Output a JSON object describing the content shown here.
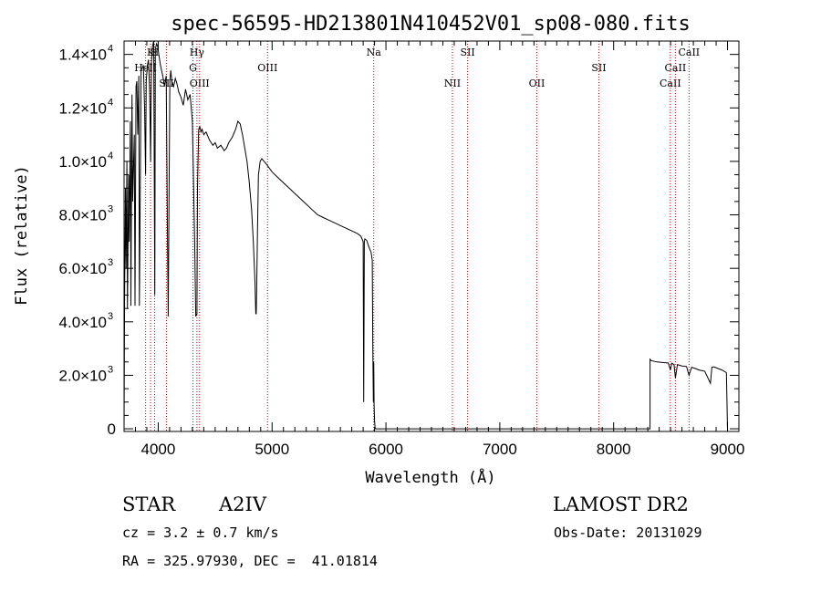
{
  "chart_data": {
    "type": "line",
    "title": "spec-56595-HD213801N410452V01_sp08-080.fits",
    "xlabel": "Wavelength (Å)",
    "ylabel": "Flux (relative)",
    "xlim": [
      3700,
      9100
    ],
    "ylim": [
      -100,
      14500
    ],
    "x_ticks": [
      {
        "value": 4000,
        "label": "4000"
      },
      {
        "value": 5000,
        "label": "5000"
      },
      {
        "value": 6000,
        "label": "6000"
      },
      {
        "value": 7000,
        "label": "7000"
      },
      {
        "value": 8000,
        "label": "8000"
      },
      {
        "value": 9000,
        "label": "9000"
      }
    ],
    "y_ticks": [
      {
        "value": 0,
        "mant": "0",
        "exp": ""
      },
      {
        "value": 2000,
        "mant": "2.0×10",
        "exp": "3"
      },
      {
        "value": 4000,
        "mant": "4.0×10",
        "exp": "3"
      },
      {
        "value": 6000,
        "mant": "6.0×10",
        "exp": "3"
      },
      {
        "value": 8000,
        "mant": "8.0×10",
        "exp": "3"
      },
      {
        "value": 10000,
        "mant": "1.0×10",
        "exp": "4"
      },
      {
        "value": 12000,
        "mant": "1.2×10",
        "exp": "4"
      },
      {
        "value": 14000,
        "mant": "1.4×10",
        "exp": "4"
      }
    ],
    "grid": false,
    "series": [
      {
        "x": [
          3700,
          3705,
          3712,
          3718,
          3725,
          3730,
          3740,
          3745,
          3755,
          3760,
          3770,
          3775,
          3790,
          3796,
          3805,
          3812,
          3820,
          3830,
          3835,
          3845,
          3850,
          3860,
          3870,
          3880,
          3889,
          3895,
          3905,
          3915,
          3925,
          3933,
          3940,
          3950,
          3960,
          3970,
          3975,
          3985,
          3995,
          4005,
          4020,
          4040,
          4055,
          4070,
          4080,
          4088,
          4102,
          4110,
          4120,
          4135,
          4150,
          4165,
          4180,
          4200,
          4220,
          4240,
          4260,
          4280,
          4300,
          4320,
          4330,
          4340,
          4345,
          4355,
          4365,
          4375,
          4385,
          4400,
          4420,
          4450,
          4480,
          4500,
          4520,
          4550,
          4580,
          4600,
          4620,
          4650,
          4680,
          4700,
          4720,
          4740,
          4760,
          4780,
          4800,
          4820,
          4835,
          4850,
          4857,
          4861,
          4866,
          4872,
          4880,
          4895,
          4910,
          4930,
          4950,
          5000,
          5050,
          5100,
          5150,
          5200,
          5250,
          5300,
          5350,
          5400,
          5450,
          5500,
          5550,
          5600,
          5650,
          5700,
          5750,
          5780,
          5800,
          5805,
          5810,
          5815,
          5830,
          5850,
          5870,
          5880,
          5885,
          5890,
          5893,
          5896,
          5900,
          5905,
          5910,
          5930,
          6000,
          6200,
          6400,
          6600,
          6800,
          7000,
          7200,
          7400,
          7600,
          7800,
          8000,
          8200,
          8320,
          8320,
          8330,
          8380,
          8430,
          8480,
          8498,
          8510,
          8530,
          8542,
          8560,
          8600,
          8640,
          8662,
          8685,
          8720,
          8750,
          8800,
          8850,
          8863,
          8880,
          8920,
          8950,
          8990,
          9000,
          9005
        ],
        "y": [
          0,
          5000,
          9000,
          6000,
          10000,
          4500,
          9500,
          7000,
          11500,
          4600,
          12500,
          8500,
          11000,
          4600,
          12800,
          13000,
          11000,
          13200,
          4600,
          10500,
          13400,
          13500,
          13600,
          12000,
          9500,
          13000,
          13600,
          13800,
          12600,
          10000,
          13700,
          14300,
          14500,
          5000,
          14200,
          14400,
          14300,
          14000,
          13600,
          13200,
          12800,
          13200,
          8000,
          4200,
          13000,
          13400,
          13000,
          12800,
          13100,
          12900,
          12600,
          12400,
          12100,
          12700,
          12300,
          12500,
          11500,
          7000,
          4200,
          4300,
          9000,
          11200,
          11300,
          11100,
          11200,
          11000,
          11100,
          10800,
          10600,
          10700,
          10500,
          10600,
          10400,
          10500,
          10700,
          10900,
          11200,
          11500,
          11400,
          11000,
          10500,
          10000,
          9200,
          8200,
          7000,
          5500,
          4300,
          4300,
          5500,
          7500,
          9500,
          10000,
          10100,
          10000,
          9900,
          9600,
          9400,
          9200,
          9000,
          8800,
          8600,
          8400,
          8200,
          8000,
          7900,
          7800,
          7700,
          7600,
          7500,
          7400,
          7300,
          7200,
          7000,
          1000,
          7000,
          7100,
          7050,
          6800,
          6600,
          6300,
          3000,
          1000,
          2500,
          900,
          300,
          50,
          0,
          0,
          0,
          0,
          0,
          0,
          0,
          0,
          0,
          0,
          0,
          0,
          0,
          0,
          0,
          2600,
          2550,
          2500,
          2480,
          2460,
          2200,
          2450,
          2400,
          1900,
          2400,
          2350,
          2330,
          2000,
          2300,
          2250,
          2200,
          2150,
          1700,
          2300,
          2320,
          2250,
          2200,
          2100,
          0,
          0
        ]
      }
    ],
    "emission_lines": [
      {
        "label": "HeII",
        "x": 3889,
        "row": 2
      },
      {
        "label": "K",
        "x": 3933,
        "row": 1
      },
      {
        "label": "H",
        "x": 3968,
        "row": 1
      },
      {
        "label": "SII",
        "x": 4072,
        "row": 3
      },
      {
        "label": "Hγ",
        "x": 4340,
        "row": 1
      },
      {
        "label": "G",
        "x": 4305,
        "row": 2
      },
      {
        "label": "OIII",
        "x": 4363,
        "row": 3
      },
      {
        "label": "OIII",
        "x": 4960,
        "row": 2
      },
      {
        "label": "Na",
        "x": 5893,
        "row": 1
      },
      {
        "label": "NII",
        "x": 6584,
        "row": 3
      },
      {
        "label": "SII",
        "x": 6717,
        "row": 1
      },
      {
        "label": "OII",
        "x": 7325,
        "row": 3
      },
      {
        "label": "SII",
        "x": 7870,
        "row": 2
      },
      {
        "label": "CaII",
        "x": 8498,
        "row": 3
      },
      {
        "label": "CaII",
        "x": 8542,
        "row": 2
      },
      {
        "label": "CaII",
        "x": 8662,
        "row": 1
      }
    ],
    "line_color": "#000000",
    "marker_color": "#cc0000"
  },
  "footer": {
    "object_class": "STAR",
    "subclass": "A2IV",
    "survey": "LAMOST DR2",
    "redshift": "cz = 3.2 ± 0.7 km/s",
    "obs_date": "Obs-Date: 20131029",
    "coords": "RA = 325.97930, DEC =  41.01814"
  }
}
